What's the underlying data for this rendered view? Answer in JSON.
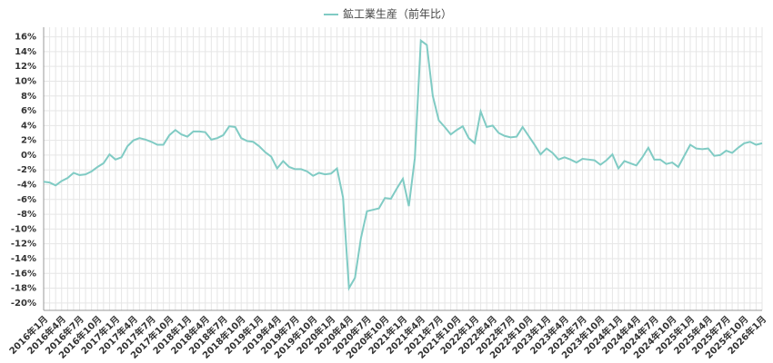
{
  "chart_data": {
    "type": "line",
    "categories": [
      "2016年1月",
      null,
      null,
      "2016年4月",
      null,
      null,
      "2016年7月",
      null,
      null,
      "2016年10月",
      null,
      null,
      "2017年1月",
      null,
      null,
      "2017年4月",
      null,
      null,
      "2017年7月",
      null,
      null,
      "2017年10月",
      null,
      null,
      "2018年1月",
      null,
      null,
      "2018年4月",
      null,
      null,
      "2018年7月",
      null,
      null,
      "2018年10月",
      null,
      null,
      "2019年1月",
      null,
      null,
      "2019年4月",
      null,
      null,
      "2019年7月",
      null,
      null,
      "2019年10月",
      null,
      null,
      "2020年1月",
      null,
      null,
      "2020年4月",
      null,
      null,
      "2020年7月",
      null,
      null,
      "2020年10月",
      null,
      null,
      "2021年1月",
      null,
      null,
      "2021年4月",
      null,
      null,
      "2021年7月",
      null,
      null,
      "2021年10月",
      null,
      null,
      "2022年1月",
      null,
      null,
      "2022年4月",
      null,
      null,
      "2022年7月",
      null,
      null,
      "2022年10月",
      null,
      null,
      "2023年1月",
      null,
      null,
      "2023年4月",
      null,
      null,
      "2023年7月",
      null,
      null,
      "2023年10月",
      null,
      null,
      "2024年1月",
      null,
      null,
      "2024年4月",
      null,
      null,
      "2024年7月",
      null,
      null,
      "2024年10月",
      null,
      null,
      "2025年1月",
      null,
      null,
      "2025年4月",
      null,
      null,
      "2025年7月",
      null,
      null,
      "2025年10月",
      null,
      null,
      "2026年1月"
    ],
    "series": [
      {
        "name": "鉱工業生産（前年比）",
        "color": "#80cbc4",
        "values": [
          -3.6,
          -3.7,
          -4.1,
          -3.5,
          -3.1,
          -2.4,
          -2.7,
          -2.6,
          -2.2,
          -1.6,
          -1.1,
          0.1,
          -0.6,
          -0.3,
          1.2,
          2.0,
          2.3,
          2.1,
          1.8,
          1.4,
          1.4,
          2.7,
          3.4,
          2.8,
          2.5,
          3.2,
          3.2,
          3.1,
          2.1,
          2.3,
          2.7,
          3.9,
          3.8,
          2.3,
          1.9,
          1.8,
          1.2,
          0.4,
          -0.2,
          -1.8,
          -0.8,
          -1.6,
          -1.9,
          -1.9,
          -2.2,
          -2.8,
          -2.4,
          -2.6,
          -2.5,
          -1.8,
          -5.7,
          -18.0,
          -16.6,
          -11.2,
          -7.6,
          -7.4,
          -7.2,
          -5.8,
          -5.9,
          -4.5,
          -3.2,
          -6.9,
          -0.4,
          15.5,
          14.9,
          8.0,
          4.7,
          3.8,
          2.8,
          3.4,
          3.9,
          2.3,
          1.6,
          5.9,
          3.8,
          4.0,
          3.0,
          2.6,
          2.4,
          2.5,
          3.8,
          2.6,
          1.4,
          0.1,
          0.9,
          0.3,
          -0.6,
          -0.3,
          -0.6,
          -1.0,
          -0.5,
          -0.6,
          -0.7,
          -1.3,
          -0.7,
          0.1,
          -1.8,
          -0.8,
          -1.1,
          -1.4,
          -0.3,
          1.0,
          -0.6,
          -0.6,
          -1.2,
          -1.0,
          -1.6,
          -0.1,
          1.4,
          0.9,
          0.8,
          0.9,
          -0.1,
          0.0,
          0.6,
          0.3,
          1.0,
          1.6,
          1.8,
          1.4,
          1.6
        ]
      }
    ],
    "ylim": [
      -21,
      17.3
    ],
    "yticks": [
      {
        "value": 16,
        "label": "16%"
      },
      {
        "value": 14,
        "label": "14%"
      },
      {
        "value": 12,
        "label": "12%"
      },
      {
        "value": 10,
        "label": "10%"
      },
      {
        "value": 8,
        "label": "8%"
      },
      {
        "value": 6,
        "label": "6%"
      },
      {
        "value": 4,
        "label": "4%"
      },
      {
        "value": 2,
        "label": "2%"
      },
      {
        "value": 0,
        "label": "0%"
      },
      {
        "value": -2,
        "label": "-2%"
      },
      {
        "value": -4,
        "label": "-4%"
      },
      {
        "value": -6,
        "label": "-6%"
      },
      {
        "value": -8,
        "label": "-8%"
      },
      {
        "value": -10,
        "label": "-10%"
      },
      {
        "value": -12,
        "label": "-12%"
      },
      {
        "value": -14,
        "label": "-14%"
      },
      {
        "value": -16,
        "label": "-16%"
      },
      {
        "value": -18,
        "label": "-18%"
      },
      {
        "value": -20,
        "label": "-20%"
      }
    ],
    "grid": true
  }
}
